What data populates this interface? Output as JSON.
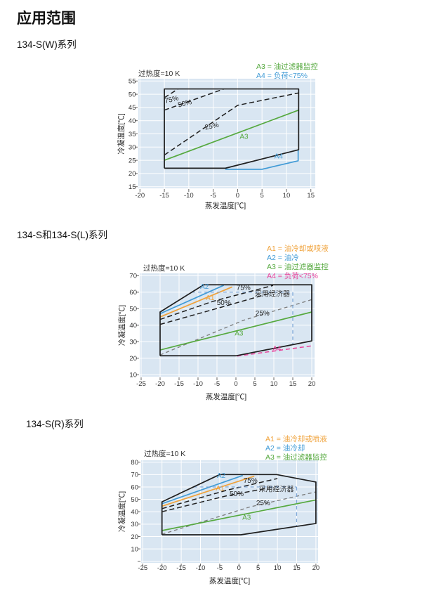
{
  "page_title": "应用范围",
  "palette": {
    "black": "#1f1f1f",
    "dark": "#333333",
    "gray": "#7a7a7a",
    "green": "#56a93f",
    "blue": "#419bd6",
    "orange": "#f0a23a",
    "pink": "#e8429a",
    "lightblue": "#7fa8d9",
    "plot_bg": "#d9e6f2",
    "grid": "#ffffff",
    "tick_text": "#333333"
  },
  "sections": [
    {
      "id": "134-sw",
      "title": "134-S(W)系列",
      "superheat_label": "过热度=10 K",
      "legend": [
        {
          "label": "A3 = 油过滤器监控",
          "color": "green"
        },
        {
          "label": "A4 = 负荷<75%",
          "color": "blue"
        }
      ],
      "chart_data": {
        "type": "line",
        "xlabel": "蒸发温度[℃]",
        "ylabel": "冷凝温度[℃]",
        "xlim": [
          -20,
          15
        ],
        "ylim": [
          15,
          55
        ],
        "xticks": [
          -20,
          -15,
          -10,
          -5,
          0,
          5,
          10,
          15
        ],
        "yticks": [
          15,
          20,
          25,
          30,
          35,
          40,
          45,
          50,
          55
        ],
        "boundary": [
          [
            -15,
            22
          ],
          [
            -15,
            52
          ],
          [
            12.5,
            52
          ],
          [
            12.5,
            29
          ],
          [
            -2.5,
            22
          ],
          [
            -15,
            22
          ]
        ],
        "series": [
          {
            "name": "load-75pct",
            "style": "dash:black",
            "points": [
              [
                -15,
                48.7
              ],
              [
                -12.2,
                52
              ]
            ]
          },
          {
            "name": "load-50pct",
            "style": "dash:black",
            "points": [
              [
                -15,
                44
              ],
              [
                -2.8,
                52
              ]
            ]
          },
          {
            "name": "load-25pct",
            "style": "dash:black",
            "points": [
              [
                -15,
                27
              ],
              [
                0,
                45.8
              ],
              [
                12.5,
                50.5
              ]
            ]
          },
          {
            "name": "a3-oil-filter",
            "style": "solid:green",
            "points": [
              [
                -15,
                25
              ],
              [
                12.5,
                44
              ]
            ]
          },
          {
            "name": "a4-part-load",
            "style": "solid:blue",
            "points": [
              [
                -2.5,
                21.6
              ],
              [
                5,
                21.6
              ],
              [
                12.4,
                24.8
              ],
              [
                12.4,
                28.8
              ]
            ]
          }
        ],
        "annotations": [
          {
            "text": "75%",
            "x": -13.4,
            "y": 47.2,
            "rotate": -14,
            "color": "black"
          },
          {
            "text": "50%",
            "x": -10.7,
            "y": 45.7,
            "rotate": -14,
            "color": "black"
          },
          {
            "text": "25%",
            "x": -5.2,
            "y": 37.1,
            "rotate": -12,
            "color": "black"
          },
          {
            "text": "A3",
            "x": 1.3,
            "y": 33.2,
            "color": "green"
          },
          {
            "text": "A4",
            "x": 8.4,
            "y": 25.7,
            "color": "blue"
          }
        ]
      }
    },
    {
      "id": "134-s-and-134-sl",
      "title": "134-S和134-S(L)系列",
      "superheat_label": "过热度=10 K",
      "legend": [
        {
          "label": "A1 = 油冷却或喷液",
          "color": "orange"
        },
        {
          "label": "A2 = 油冷",
          "color": "blue"
        },
        {
          "label": "A3 = 油过滤器监控",
          "color": "green"
        },
        {
          "label": "A4 = 负荷<75%",
          "color": "pink"
        }
      ],
      "chart_data": {
        "type": "line",
        "xlabel": "蒸发温度[℃]",
        "ylabel": "冷凝温度[℃]",
        "xlim": [
          -25,
          20
        ],
        "ylim": [
          10,
          70
        ],
        "xticks": [
          -25,
          -20,
          -15,
          -10,
          -5,
          0,
          5,
          10,
          15,
          20
        ],
        "yticks": [
          10,
          20,
          30,
          40,
          50,
          60,
          70
        ],
        "boundary": [
          [
            -20,
            21.5
          ],
          [
            -20,
            48
          ],
          [
            -8.5,
            64.5
          ],
          [
            20,
            64.5
          ],
          [
            20,
            30.5
          ],
          [
            0,
            21.5
          ],
          [
            -20,
            21.5
          ]
        ],
        "series": [
          {
            "name": "a2-oil-cooling",
            "style": "solid:blue",
            "points": [
              [
                -20,
                47
              ],
              [
                -3.2,
                64.2
              ]
            ]
          },
          {
            "name": "a1-oil-cooling-or-liquid-injection",
            "style": "solid:orange",
            "points": [
              [
                -20,
                45
              ],
              [
                -1,
                63.2
              ]
            ]
          },
          {
            "name": "load-75pct",
            "style": "dash:black",
            "points": [
              [
                -20,
                43.5
              ],
              [
                -6,
                54.5
              ],
              [
                9.8,
                64.1
              ]
            ]
          },
          {
            "name": "load-50pct",
            "style": "dash:black",
            "points": [
              [
                -20,
                40.5
              ],
              [
                -6,
                49.5
              ],
              [
                10,
                60
              ]
            ]
          },
          {
            "name": "load-25pct",
            "style": "dash:gray",
            "points": [
              [
                -20,
                22
              ],
              [
                2,
                43
              ],
              [
                20,
                55.5
              ]
            ]
          },
          {
            "name": "a3-oil-filter",
            "style": "solid:green",
            "points": [
              [
                -20,
                25
              ],
              [
                20,
                48
              ]
            ]
          },
          {
            "name": "a4-part-load",
            "style": "dash:pink",
            "points": [
              [
                0.3,
                21.3
              ],
              [
                20,
                27.5
              ]
            ]
          },
          {
            "name": "economizer-boundary-h",
            "style": "dash:lightblue",
            "points": [
              [
                -11.7,
                60
              ],
              [
                15,
                60
              ]
            ]
          },
          {
            "name": "economizer-boundary-v",
            "style": "dash:lightblue",
            "points": [
              [
                15,
                60
              ],
              [
                15,
                28.3
              ]
            ]
          }
        ],
        "annotations": [
          {
            "text": "A2",
            "x": -8.3,
            "y": 62.0,
            "color": "blue"
          },
          {
            "text": "A1",
            "x": -6.8,
            "y": 55.3,
            "color": "orange"
          },
          {
            "text": "75%",
            "x": 2.0,
            "y": 61.3,
            "color": "black"
          },
          {
            "text": "50%",
            "x": -3.2,
            "y": 52.2,
            "color": "black"
          },
          {
            "text": "25%",
            "x": 7.0,
            "y": 45.9,
            "color": "black"
          },
          {
            "text": "采用经济器",
            "x": 9.6,
            "y": 57.6,
            "color": "dark"
          },
          {
            "text": "A3",
            "x": 0.8,
            "y": 33.8,
            "color": "green"
          },
          {
            "text": "A4",
            "x": 10.8,
            "y": 24.7,
            "color": "pink"
          }
        ]
      }
    },
    {
      "id": "134-sr",
      "title": "134-S(R)系列",
      "superheat_label": "过热度=10 K",
      "legend": [
        {
          "label": "A1 = 油冷却或喷液",
          "color": "orange"
        },
        {
          "label": "A2 = 油冷却",
          "color": "blue"
        },
        {
          "label": "A3 = 油过滤器监控",
          "color": "green"
        }
      ],
      "chart_data": {
        "type": "line",
        "xlabel": "蒸发温度[℃]",
        "ylabel": "冷凝温度[℃]",
        "xlim": [
          -25,
          20
        ],
        "ylim": [
          0,
          80
        ],
        "xticks": [
          -25,
          -20,
          -15,
          -10,
          -5,
          0,
          5,
          10,
          15,
          20
        ],
        "yticks": [
          0,
          10,
          20,
          30,
          40,
          50,
          60,
          70,
          80
        ],
        "ytick_labels": [
          "",
          "10",
          "20",
          "30",
          "40",
          "50",
          "60",
          "70",
          "80"
        ],
        "boundary": [
          [
            -20,
            21.4
          ],
          [
            -20,
            48
          ],
          [
            -5,
            70
          ],
          [
            9.8,
            70
          ],
          [
            20,
            64
          ],
          [
            20,
            30.5
          ],
          [
            0.5,
            21.4
          ],
          [
            -20,
            21.4
          ]
        ],
        "series": [
          {
            "name": "a2-oil-cooling",
            "style": "solid:blue",
            "points": [
              [
                -20,
                46.5
              ],
              [
                1,
                69.3
              ]
            ]
          },
          {
            "name": "a1-oil-cooling-or-liquid-injection",
            "style": "solid:orange",
            "points": [
              [
                -20,
                44.5
              ],
              [
                4,
                68.7
              ]
            ]
          },
          {
            "name": "load-75pct",
            "style": "dash:black",
            "points": [
              [
                -20,
                42.5
              ],
              [
                -3,
                57.5
              ],
              [
                10,
                66.8
              ]
            ]
          },
          {
            "name": "load-50pct",
            "style": "dash:black",
            "points": [
              [
                -20,
                40
              ],
              [
                -3,
                53
              ],
              [
                10,
                60.5
              ]
            ]
          },
          {
            "name": "load-25pct",
            "style": "dash:gray",
            "points": [
              [
                -20,
                21.8
              ],
              [
                3,
                44
              ],
              [
                20,
                56
              ]
            ]
          },
          {
            "name": "a3-oil-filter",
            "style": "solid:green",
            "points": [
              [
                -20,
                24.8
              ],
              [
                20,
                49.5
              ]
            ]
          },
          {
            "name": "economizer-boundary-h",
            "style": "dash:lightblue",
            "points": [
              [
                -11.8,
                60
              ],
              [
                15,
                60
              ]
            ]
          },
          {
            "name": "economizer-boundary-v",
            "style": "dash:lightblue",
            "points": [
              [
                15,
                60
              ],
              [
                15,
                28.2
              ]
            ]
          }
        ],
        "annotations": [
          {
            "text": "A2",
            "x": -4.6,
            "y": 67.3,
            "color": "blue"
          },
          {
            "text": "A1",
            "x": -4.9,
            "y": 57.2,
            "color": "orange"
          },
          {
            "text": "75%",
            "x": 3.0,
            "y": 63.5,
            "color": "black"
          },
          {
            "text": "50%",
            "x": -0.6,
            "y": 52.7,
            "color": "black"
          },
          {
            "text": "25%",
            "x": 6.3,
            "y": 45.2,
            "color": "black"
          },
          {
            "text": "采用经济器",
            "x": 9.7,
            "y": 56.2,
            "color": "dark"
          },
          {
            "text": "A3",
            "x": 2.0,
            "y": 33.5,
            "color": "green"
          }
        ]
      }
    }
  ]
}
